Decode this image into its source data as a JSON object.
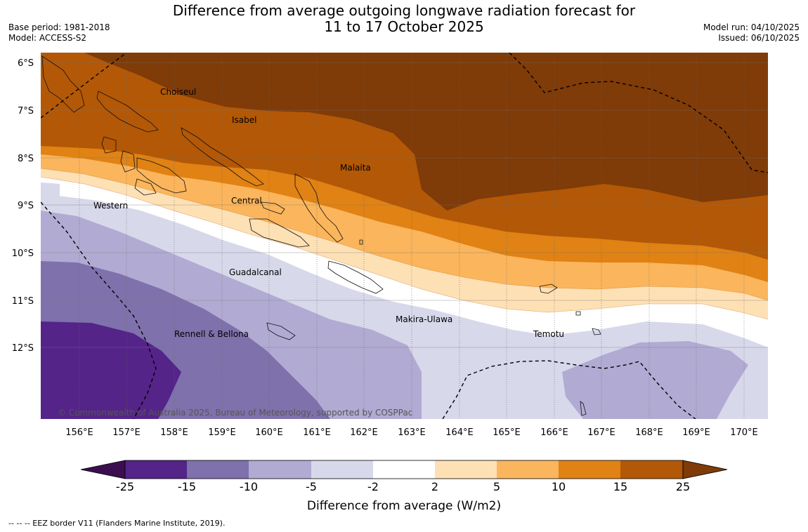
{
  "title_line1": "Difference from average outgoing longwave radiation forecast for",
  "title_line2": "11 to 17 October 2025",
  "base_period": "Base period: 1981-2018",
  "model": "Model: ACCESS-S2",
  "model_run": "Model run: 04/10/2025",
  "issued": "Issued: 06/10/2025",
  "lat_labels": [
    "6°S",
    "7°S",
    "8°S",
    "9°S",
    "10°S",
    "11°S",
    "12°S"
  ],
  "lon_labels": [
    "156°E",
    "157°E",
    "158°E",
    "159°E",
    "160°E",
    "161°E",
    "162°E",
    "163°E",
    "164°E",
    "165°E",
    "166°E",
    "167°E",
    "168°E",
    "169°E",
    "170°E"
  ],
  "place_labels": {
    "choiseul": "Choiseul",
    "isabel": "Isabel",
    "malaita": "Malaita",
    "western": "Western",
    "central": "Central",
    "guadalcanal": "Guadalcanal",
    "makira": "Makira-Ulawa",
    "rennell": "Rennell & Bellona",
    "temotu": "Temotu"
  },
  "copyright": "© Commonwealth of Australia 2025, Bureau of Meteorology, supported by COSPPac",
  "colorbar": {
    "title": "Difference from average (W/m2)",
    "ticks": [
      "-25",
      "-15",
      "-10",
      "-5",
      "-2",
      "2",
      "5",
      "10",
      "15",
      "25"
    ],
    "colors": {
      "lt_neg25": "#3b0f4f",
      "neg25_neg15": "#542489",
      "neg15_neg10": "#7f71ac",
      "neg10_neg5": "#b1abd3",
      "neg5_neg2": "#d8d8eb",
      "neg2_2": "#ffffff",
      "p2_5": "#fee0b5",
      "p5_10": "#fbb55c",
      "p10_15": "#e08214",
      "p15_25": "#b35806",
      "gt25": "#7f3b08"
    }
  },
  "eez_note": "--  --  -- EEZ border V11 (Flanders Marine Institute, 2019)."
}
